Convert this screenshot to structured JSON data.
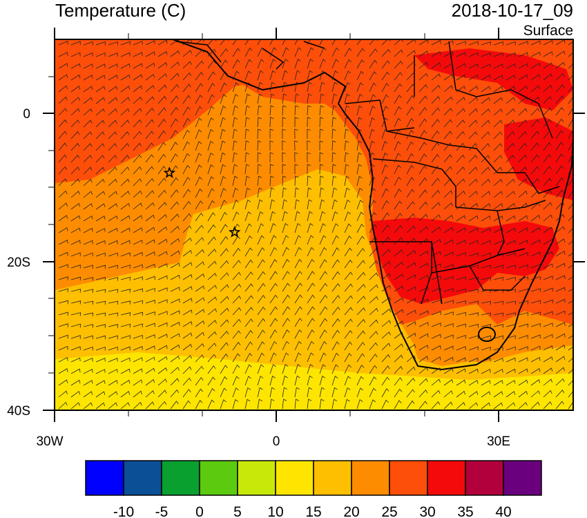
{
  "header": {
    "title_left": "Temperature (C)",
    "title_right": "2018-10-17_09",
    "subtitle_right": "Surface"
  },
  "axes": {
    "x_ticks": [
      {
        "label": "30W",
        "lon": -30
      },
      {
        "label": "0",
        "lon": 0
      },
      {
        "label": "30E",
        "lon": 30
      }
    ],
    "y_ticks": [
      {
        "label": "0",
        "lat": 0
      },
      {
        "label": "20S",
        "lat": -20
      },
      {
        "label": "40S",
        "lat": -40
      }
    ],
    "lon_range": [
      -30,
      40
    ],
    "lat_range": [
      -40,
      10
    ]
  },
  "colorbar": {
    "labels": [
      "-10",
      "-5",
      "0",
      "5",
      "10",
      "15",
      "20",
      "25",
      "30",
      "35",
      "40"
    ],
    "colors": [
      "#0000ff",
      "#0b4f96",
      "#09a030",
      "#5ccb10",
      "#c8e80a",
      "#fde500",
      "#fdbf00",
      "#fd8c00",
      "#fd4e0a",
      "#f40a0a",
      "#b2003c",
      "#6a007e"
    ]
  },
  "markers": [
    {
      "name": "star-marker-1",
      "lon": -14.5,
      "lat": -8
    },
    {
      "name": "star-marker-2",
      "lon": -5.7,
      "lat": -16
    }
  ],
  "field_colors": {
    "ocean_cool": "#fde500",
    "ocean_mid": "#fdbf00",
    "ocean_warm": "#fd8c00",
    "land_hot": "#fd4e0a",
    "land_very_hot": "#f40a0a"
  }
}
